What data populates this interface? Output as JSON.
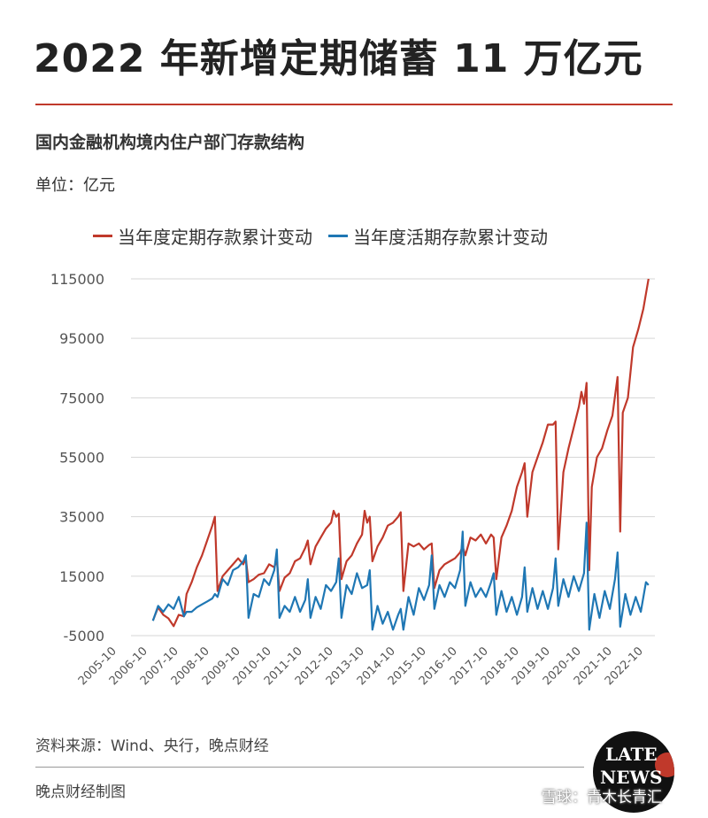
{
  "header": {
    "title": "2022 年新增定期储蓄 11 万亿元",
    "subtitle": "国内金融机构境内住户部门存款结构",
    "unit": "单位：亿元"
  },
  "footer": {
    "source": "资料来源：Wind、央行，晚点财经",
    "made_by": "晚点财经制图",
    "logo_line1": "LATE",
    "logo_line2": "NEWS",
    "watermark": "雪球：青木长青汇"
  },
  "colors": {
    "accent": "#c0392b",
    "fixed": "#c0392b",
    "demand": "#1f77b4"
  },
  "chart_data": {
    "type": "line",
    "ylim": [
      -5000,
      115000
    ],
    "yticks": [
      -5000,
      15000,
      35000,
      55000,
      75000,
      95000,
      115000
    ],
    "xticks": [
      "2005-10",
      "2006-10",
      "2007-10",
      "2008-10",
      "2009-10",
      "2010-10",
      "2011-10",
      "2012-10",
      "2013-10",
      "2014-10",
      "2015-10",
      "2016-10",
      "2017-10",
      "2018-10",
      "2019-10",
      "2020-10",
      "2021-10",
      "2022-10"
    ],
    "grid": "horizontal",
    "legend": "top",
    "series": [
      {
        "name": "当年度定期存款累计变动",
        "color": "#c0392b",
        "points": [
          [
            "2006-12",
            100
          ],
          [
            "2007-02",
            4500
          ],
          [
            "2007-04",
            2000
          ],
          [
            "2007-06",
            800
          ],
          [
            "2007-08",
            -1800
          ],
          [
            "2007-10",
            2000
          ],
          [
            "2007-12",
            1500
          ],
          [
            "2008-01",
            9000
          ],
          [
            "2008-03",
            13000
          ],
          [
            "2008-05",
            18000
          ],
          [
            "2008-07",
            22000
          ],
          [
            "2008-09",
            27000
          ],
          [
            "2008-11",
            32000
          ],
          [
            "2008-12",
            35000
          ],
          [
            "2009-01",
            10000
          ],
          [
            "2009-03",
            15000
          ],
          [
            "2009-05",
            17000
          ],
          [
            "2009-07",
            19000
          ],
          [
            "2009-09",
            21000
          ],
          [
            "2009-11",
            19000
          ],
          [
            "2009-12",
            21000
          ],
          [
            "2010-01",
            13000
          ],
          [
            "2010-03",
            14000
          ],
          [
            "2010-05",
            15500
          ],
          [
            "2010-07",
            16000
          ],
          [
            "2010-09",
            19000
          ],
          [
            "2010-11",
            18000
          ],
          [
            "2010-12",
            20500
          ],
          [
            "2011-01",
            10000
          ],
          [
            "2011-03",
            14500
          ],
          [
            "2011-05",
            16000
          ],
          [
            "2011-07",
            20000
          ],
          [
            "2011-09",
            21000
          ],
          [
            "2011-11",
            24500
          ],
          [
            "2011-12",
            27000
          ],
          [
            "2012-01",
            19000
          ],
          [
            "2012-03",
            25000
          ],
          [
            "2012-05",
            28000
          ],
          [
            "2012-07",
            31000
          ],
          [
            "2012-09",
            33000
          ],
          [
            "2012-10",
            37000
          ],
          [
            "2012-11",
            35000
          ],
          [
            "2012-12",
            36000
          ],
          [
            "2013-01",
            14000
          ],
          [
            "2013-03",
            20000
          ],
          [
            "2013-05",
            22000
          ],
          [
            "2013-07",
            26000
          ],
          [
            "2013-09",
            29000
          ],
          [
            "2013-10",
            37000
          ],
          [
            "2013-11",
            33000
          ],
          [
            "2013-12",
            35000
          ],
          [
            "2014-01",
            20000
          ],
          [
            "2014-03",
            25000
          ],
          [
            "2014-05",
            28000
          ],
          [
            "2014-07",
            32000
          ],
          [
            "2014-09",
            33000
          ],
          [
            "2014-11",
            35000
          ],
          [
            "2014-12",
            36500
          ],
          [
            "2015-01",
            10000
          ],
          [
            "2015-03",
            26000
          ],
          [
            "2015-05",
            25000
          ],
          [
            "2015-07",
            26000
          ],
          [
            "2015-09",
            24000
          ],
          [
            "2015-11",
            25500
          ],
          [
            "2015-12",
            26000
          ],
          [
            "2016-01",
            11000
          ],
          [
            "2016-03",
            17000
          ],
          [
            "2016-05",
            19000
          ],
          [
            "2016-07",
            20000
          ],
          [
            "2016-09",
            21000
          ],
          [
            "2016-11",
            23000
          ],
          [
            "2016-12",
            25000
          ],
          [
            "2017-01",
            22000
          ],
          [
            "2017-03",
            28000
          ],
          [
            "2017-05",
            27000
          ],
          [
            "2017-07",
            29000
          ],
          [
            "2017-09",
            26000
          ],
          [
            "2017-11",
            29000
          ],
          [
            "2017-12",
            28000
          ],
          [
            "2018-01",
            14000
          ],
          [
            "2018-03",
            28000
          ],
          [
            "2018-05",
            32000
          ],
          [
            "2018-07",
            37000
          ],
          [
            "2018-09",
            45000
          ],
          [
            "2018-11",
            50000
          ],
          [
            "2018-12",
            53000
          ],
          [
            "2019-01",
            35000
          ],
          [
            "2019-03",
            50000
          ],
          [
            "2019-05",
            55000
          ],
          [
            "2019-07",
            60000
          ],
          [
            "2019-09",
            66000
          ],
          [
            "2019-11",
            66000
          ],
          [
            "2019-12",
            67000
          ],
          [
            "2020-01",
            24000
          ],
          [
            "2020-03",
            50000
          ],
          [
            "2020-05",
            58000
          ],
          [
            "2020-07",
            65000
          ],
          [
            "2020-09",
            72000
          ],
          [
            "2020-10",
            77000
          ],
          [
            "2020-11",
            73000
          ],
          [
            "2020-12",
            80000
          ],
          [
            "2021-01",
            17000
          ],
          [
            "2021-02",
            45000
          ],
          [
            "2021-04",
            55000
          ],
          [
            "2021-06",
            58000
          ],
          [
            "2021-08",
            64000
          ],
          [
            "2021-10",
            69000
          ],
          [
            "2021-12",
            82000
          ],
          [
            "2022-01",
            30000
          ],
          [
            "2022-02",
            70000
          ],
          [
            "2022-04",
            75000
          ],
          [
            "2022-06",
            92000
          ],
          [
            "2022-08",
            98000
          ],
          [
            "2022-10",
            105000
          ],
          [
            "2022-12",
            115000
          ]
        ]
      },
      {
        "name": "当年度活期存款累计变动",
        "color": "#1f77b4",
        "points": [
          [
            "2006-12",
            0
          ],
          [
            "2007-02",
            5000
          ],
          [
            "2007-04",
            3000
          ],
          [
            "2007-06",
            5500
          ],
          [
            "2007-08",
            4000
          ],
          [
            "2007-10",
            8000
          ],
          [
            "2007-12",
            1500
          ],
          [
            "2008-01",
            3000
          ],
          [
            "2008-03",
            3000
          ],
          [
            "2008-05",
            4500
          ],
          [
            "2008-07",
            5500
          ],
          [
            "2008-09",
            6500
          ],
          [
            "2008-11",
            7500
          ],
          [
            "2008-12",
            9000
          ],
          [
            "2009-01",
            8000
          ],
          [
            "2009-03",
            14000
          ],
          [
            "2009-05",
            12000
          ],
          [
            "2009-07",
            17000
          ],
          [
            "2009-09",
            18000
          ],
          [
            "2009-11",
            20000
          ],
          [
            "2009-12",
            22000
          ],
          [
            "2010-01",
            1000
          ],
          [
            "2010-03",
            9000
          ],
          [
            "2010-05",
            8000
          ],
          [
            "2010-07",
            14000
          ],
          [
            "2010-09",
            12000
          ],
          [
            "2010-11",
            17000
          ],
          [
            "2010-12",
            24000
          ],
          [
            "2011-01",
            1000
          ],
          [
            "2011-03",
            5000
          ],
          [
            "2011-05",
            3000
          ],
          [
            "2011-07",
            8000
          ],
          [
            "2011-09",
            3000
          ],
          [
            "2011-11",
            7000
          ],
          [
            "2011-12",
            14000
          ],
          [
            "2012-01",
            1000
          ],
          [
            "2012-03",
            8000
          ],
          [
            "2012-05",
            4000
          ],
          [
            "2012-07",
            12000
          ],
          [
            "2012-09",
            10000
          ],
          [
            "2012-11",
            13000
          ],
          [
            "2012-12",
            21000
          ],
          [
            "2013-01",
            1000
          ],
          [
            "2013-03",
            12000
          ],
          [
            "2013-05",
            9000
          ],
          [
            "2013-07",
            16000
          ],
          [
            "2013-09",
            11000
          ],
          [
            "2013-11",
            12000
          ],
          [
            "2013-12",
            17000
          ],
          [
            "2014-01",
            -3000
          ],
          [
            "2014-03",
            5000
          ],
          [
            "2014-05",
            -1000
          ],
          [
            "2014-07",
            3000
          ],
          [
            "2014-09",
            -3000
          ],
          [
            "2014-11",
            2000
          ],
          [
            "2014-12",
            4000
          ],
          [
            "2015-01",
            -3000
          ],
          [
            "2015-03",
            8000
          ],
          [
            "2015-05",
            2000
          ],
          [
            "2015-07",
            11000
          ],
          [
            "2015-09",
            7000
          ],
          [
            "2015-11",
            12000
          ],
          [
            "2015-12",
            22000
          ],
          [
            "2016-01",
            4000
          ],
          [
            "2016-03",
            12000
          ],
          [
            "2016-05",
            8000
          ],
          [
            "2016-07",
            13000
          ],
          [
            "2016-09",
            11000
          ],
          [
            "2016-11",
            17000
          ],
          [
            "2016-12",
            30000
          ],
          [
            "2017-01",
            5000
          ],
          [
            "2017-03",
            13000
          ],
          [
            "2017-05",
            8000
          ],
          [
            "2017-07",
            11000
          ],
          [
            "2017-09",
            8000
          ],
          [
            "2017-11",
            13000
          ],
          [
            "2017-12",
            16000
          ],
          [
            "2018-01",
            2000
          ],
          [
            "2018-03",
            10000
          ],
          [
            "2018-05",
            3000
          ],
          [
            "2018-07",
            8000
          ],
          [
            "2018-09",
            2000
          ],
          [
            "2018-11",
            8000
          ],
          [
            "2018-12",
            18000
          ],
          [
            "2019-01",
            3000
          ],
          [
            "2019-03",
            11000
          ],
          [
            "2019-05",
            4000
          ],
          [
            "2019-07",
            10000
          ],
          [
            "2019-09",
            4000
          ],
          [
            "2019-11",
            11000
          ],
          [
            "2019-12",
            21000
          ],
          [
            "2020-01",
            5000
          ],
          [
            "2020-03",
            14000
          ],
          [
            "2020-05",
            8000
          ],
          [
            "2020-07",
            15000
          ],
          [
            "2020-09",
            10000
          ],
          [
            "2020-11",
            16000
          ],
          [
            "2020-12",
            33000
          ],
          [
            "2021-01",
            -3000
          ],
          [
            "2021-03",
            9000
          ],
          [
            "2021-05",
            1000
          ],
          [
            "2021-07",
            10000
          ],
          [
            "2021-09",
            4000
          ],
          [
            "2021-11",
            14000
          ],
          [
            "2021-12",
            23000
          ],
          [
            "2022-01",
            -2000
          ],
          [
            "2022-03",
            9000
          ],
          [
            "2022-05",
            2000
          ],
          [
            "2022-07",
            8000
          ],
          [
            "2022-09",
            3000
          ],
          [
            "2022-11",
            13000
          ],
          [
            "2022-12",
            12000
          ]
        ]
      }
    ]
  }
}
